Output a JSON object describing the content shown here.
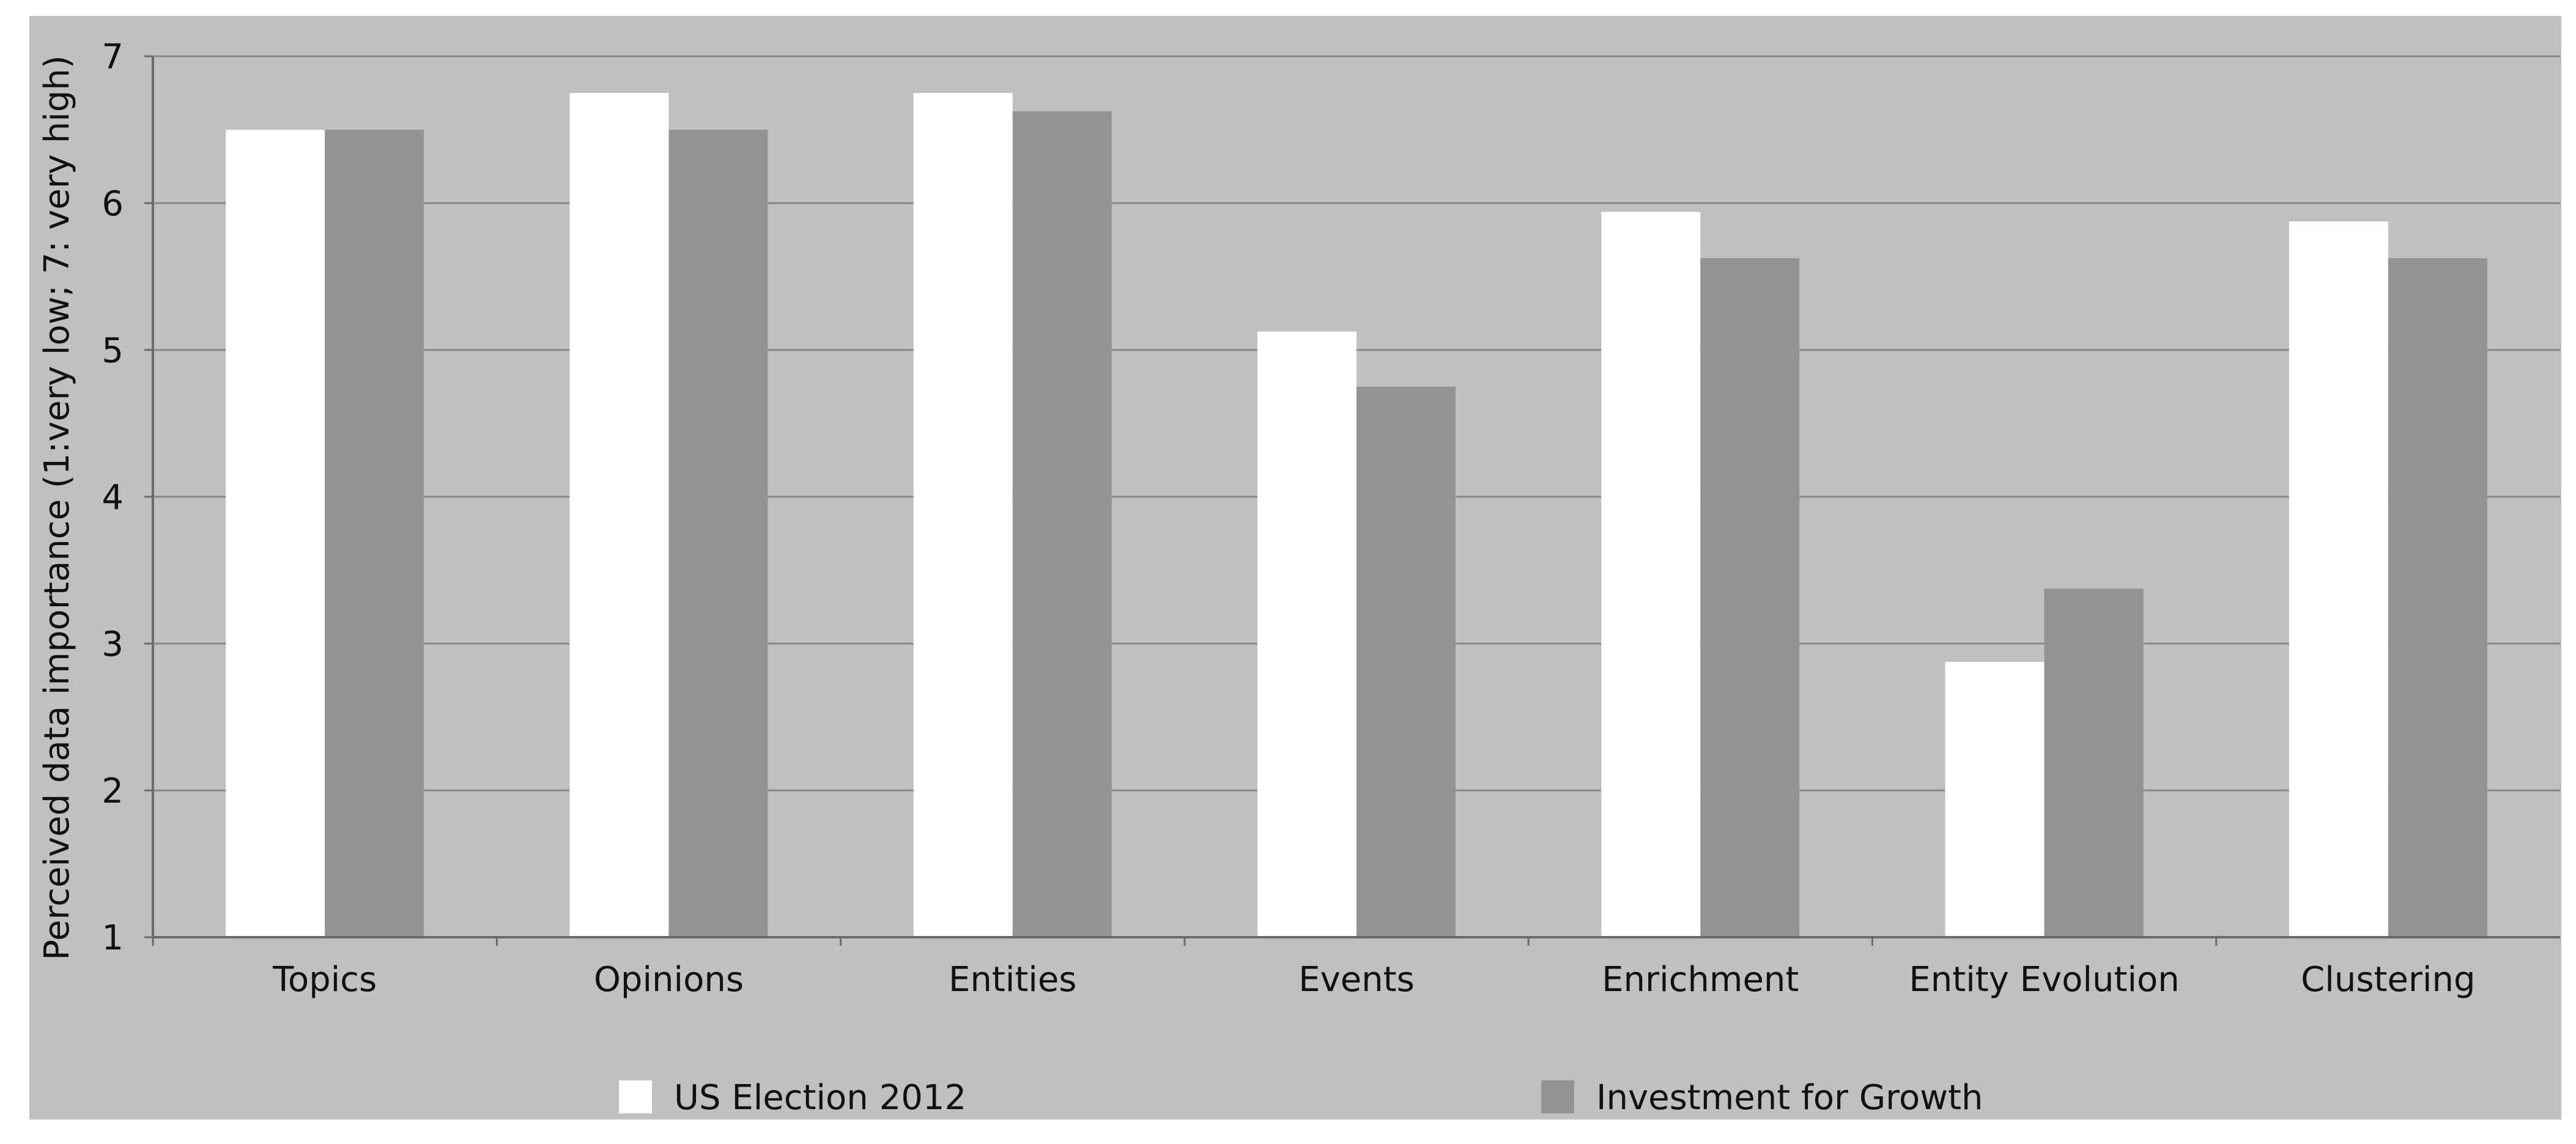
{
  "chart_data": {
    "type": "bar",
    "title": "",
    "xlabel": "",
    "ylabel": "Perceived data importance (1:very low; 7: very high)",
    "ylim": [
      1,
      7
    ],
    "yticks": [
      "1",
      "2",
      "3",
      "4",
      "5",
      "6",
      "7"
    ],
    "grid": true,
    "legend_position": "bottom",
    "categories": [
      "Topics",
      "Opinions",
      "Entities",
      "Events",
      "Enrichment",
      "Entity Evolution",
      "Clustering"
    ],
    "series": [
      {
        "name": "US Election 2012",
        "color": "#ffffff",
        "values": [
          6.5,
          6.75,
          6.75,
          5.125,
          5.94,
          2.875,
          5.875
        ]
      },
      {
        "name": "Investment for Growth",
        "color": "#939393",
        "values": [
          6.5,
          6.5,
          6.625,
          4.75,
          5.625,
          3.375,
          5.625
        ]
      }
    ],
    "colors": {
      "panel": "#c0c0c0",
      "grid": "#8a8a8a",
      "axis": "#6a6a6a"
    }
  }
}
